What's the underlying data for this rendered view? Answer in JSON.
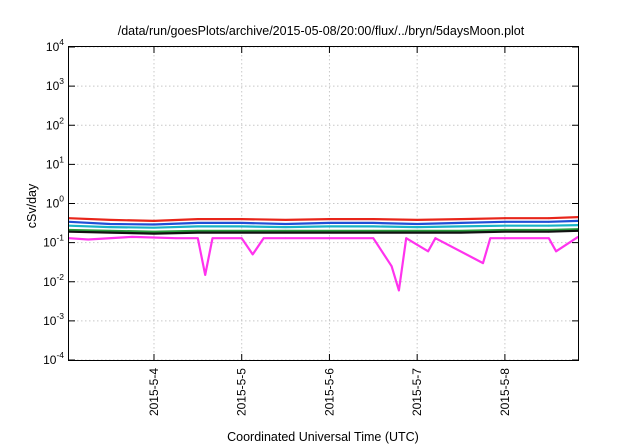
{
  "chart_data": {
    "type": "line",
    "title": "/data/run/goesPlots/archive/2015-05-08/20:00/flux/../bryn/5daysMoon.plot",
    "xlabel": "Coordinated Universal Time (UTC)",
    "ylabel": "cSv/day",
    "y_scale": "log",
    "ylim": [
      0.0001,
      10000
    ],
    "y_ticks": [
      {
        "value": 0.0001,
        "base": "10",
        "exp": "-4"
      },
      {
        "value": 0.001,
        "base": "10",
        "exp": "-3"
      },
      {
        "value": 0.01,
        "base": "10",
        "exp": "-2"
      },
      {
        "value": 0.1,
        "base": "10",
        "exp": "-1"
      },
      {
        "value": 1,
        "base": "10",
        "exp": "0"
      },
      {
        "value": 10,
        "base": "10",
        "exp": "1"
      },
      {
        "value": 100,
        "base": "10",
        "exp": "2"
      },
      {
        "value": 1000,
        "base": "10",
        "exp": "3"
      },
      {
        "value": 10000,
        "base": "10",
        "exp": "4"
      }
    ],
    "xlim": [
      "2015-05-03T00:45",
      "2015-05-08T20:00"
    ],
    "x_ticks": [
      "2015-5-4",
      "2015-5-5",
      "2015-5-6",
      "2015-5-7",
      "2015-5-8"
    ],
    "grid": true,
    "legend": "none",
    "series": [
      {
        "color": "#e8251a",
        "x": [
          "2015-05-03T00:45",
          "2015-05-03T12:00",
          "2015-05-04T00:00",
          "2015-05-04T12:00",
          "2015-05-05T00:00",
          "2015-05-05T12:00",
          "2015-05-06T00:00",
          "2015-05-06T12:00",
          "2015-05-07T00:00",
          "2015-05-07T12:00",
          "2015-05-08T00:00",
          "2015-05-08T12:00",
          "2015-05-08T20:00"
        ],
        "y": [
          0.42,
          0.38,
          0.36,
          0.4,
          0.4,
          0.38,
          0.4,
          0.4,
          0.38,
          0.4,
          0.42,
          0.42,
          0.45
        ]
      },
      {
        "color": "#1f4fd6",
        "x": [
          "2015-05-03T00:45",
          "2015-05-03T12:00",
          "2015-05-04T00:00",
          "2015-05-04T12:00",
          "2015-05-05T00:00",
          "2015-05-05T12:00",
          "2015-05-06T00:00",
          "2015-05-06T12:00",
          "2015-05-07T00:00",
          "2015-05-07T12:00",
          "2015-05-08T00:00",
          "2015-05-08T12:00",
          "2015-05-08T20:00"
        ],
        "y": [
          0.34,
          0.3,
          0.29,
          0.32,
          0.32,
          0.3,
          0.32,
          0.32,
          0.3,
          0.32,
          0.34,
          0.34,
          0.36
        ]
      },
      {
        "color": "#18b3c6",
        "x": [
          "2015-05-03T00:45",
          "2015-05-03T12:00",
          "2015-05-04T00:00",
          "2015-05-04T12:00",
          "2015-05-05T00:00",
          "2015-05-05T12:00",
          "2015-05-06T00:00",
          "2015-05-06T12:00",
          "2015-05-07T00:00",
          "2015-05-07T12:00",
          "2015-05-08T00:00",
          "2015-05-08T12:00",
          "2015-05-08T20:00"
        ],
        "y": [
          0.27,
          0.25,
          0.24,
          0.26,
          0.26,
          0.25,
          0.26,
          0.26,
          0.25,
          0.26,
          0.27,
          0.27,
          0.28
        ]
      },
      {
        "color": "#2a9a3c",
        "x": [
          "2015-05-03T00:45",
          "2015-05-03T12:00",
          "2015-05-04T00:00",
          "2015-05-04T12:00",
          "2015-05-05T00:00",
          "2015-05-05T12:00",
          "2015-05-06T00:00",
          "2015-05-06T12:00",
          "2015-05-07T00:00",
          "2015-05-07T12:00",
          "2015-05-08T00:00",
          "2015-05-08T12:00",
          "2015-05-08T20:00"
        ],
        "y": [
          0.21,
          0.2,
          0.19,
          0.2,
          0.2,
          0.2,
          0.2,
          0.2,
          0.2,
          0.2,
          0.21,
          0.21,
          0.22
        ]
      },
      {
        "color": "#111111",
        "x": [
          "2015-05-03T00:45",
          "2015-05-03T12:00",
          "2015-05-04T00:00",
          "2015-05-04T12:00",
          "2015-05-05T00:00",
          "2015-05-05T12:00",
          "2015-05-06T00:00",
          "2015-05-06T12:00",
          "2015-05-07T00:00",
          "2015-05-07T12:00",
          "2015-05-08T00:00",
          "2015-05-08T12:00",
          "2015-05-08T20:00"
        ],
        "y": [
          0.19,
          0.18,
          0.17,
          0.18,
          0.18,
          0.18,
          0.18,
          0.18,
          0.18,
          0.18,
          0.19,
          0.19,
          0.2
        ]
      },
      {
        "color": "#ff33ee",
        "x": [
          "2015-05-03T00:45",
          "2015-05-03T06:00",
          "2015-05-03T18:00",
          "2015-05-04T06:00",
          "2015-05-04T12:00",
          "2015-05-04T14:00",
          "2015-05-04T16:00",
          "2015-05-05T00:00",
          "2015-05-05T03:00",
          "2015-05-05T06:00",
          "2015-05-05T12:00",
          "2015-05-06T00:00",
          "2015-05-06T12:00",
          "2015-05-06T17:00",
          "2015-05-06T19:00",
          "2015-05-06T21:00",
          "2015-05-07T03:00",
          "2015-05-07T05:00",
          "2015-05-07T18:00",
          "2015-05-07T20:00",
          "2015-05-08T00:00",
          "2015-05-08T12:00",
          "2015-05-08T14:00",
          "2015-05-08T20:00"
        ],
        "y": [
          0.13,
          0.12,
          0.14,
          0.13,
          0.13,
          0.015,
          0.13,
          0.13,
          0.05,
          0.13,
          0.13,
          0.13,
          0.13,
          0.025,
          0.006,
          0.13,
          0.06,
          0.13,
          0.03,
          0.13,
          0.13,
          0.13,
          0.06,
          0.14
        ]
      }
    ]
  }
}
